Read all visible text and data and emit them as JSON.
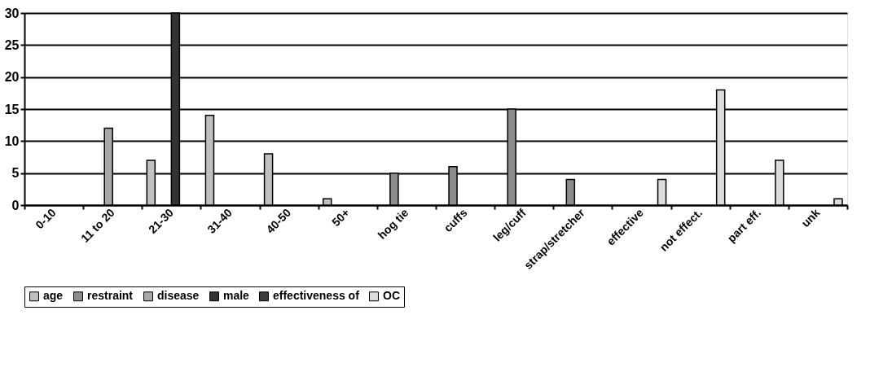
{
  "chart_data": {
    "type": "bar",
    "categories": [
      "0-10",
      "11 to 20",
      "21-30",
      "31-40",
      "40-50",
      "50+",
      "hog tie",
      "cuffs",
      "leg/cuff",
      "strap/stretcher",
      "effective",
      "not effect.",
      "part eff.",
      "unk"
    ],
    "series": [
      {
        "name": "age",
        "color": "#c0c0c0",
        "values": [
          null,
          null,
          7,
          14,
          8,
          1,
          null,
          null,
          null,
          null,
          null,
          null,
          null,
          null
        ]
      },
      {
        "name": "restraint",
        "color": "#8c8c8c",
        "values": [
          null,
          null,
          null,
          null,
          null,
          null,
          5,
          6,
          15,
          4,
          null,
          null,
          null,
          null
        ]
      },
      {
        "name": "disease",
        "color": "#a8a8a8",
        "values": [
          null,
          12,
          null,
          null,
          null,
          null,
          null,
          null,
          null,
          null,
          null,
          null,
          null,
          null
        ]
      },
      {
        "name": "male",
        "color": "#333333",
        "values": [
          null,
          null,
          30,
          null,
          null,
          null,
          null,
          null,
          null,
          null,
          null,
          null,
          null,
          null
        ]
      },
      {
        "name": "effectiveness of",
        "color": "#3c3c3c",
        "values": [
          null,
          null,
          null,
          null,
          null,
          null,
          null,
          null,
          null,
          null,
          null,
          null,
          null,
          null
        ]
      },
      {
        "name": "OC",
        "color": "#dcdcdc",
        "values": [
          null,
          null,
          null,
          null,
          null,
          null,
          null,
          null,
          null,
          null,
          4,
          18,
          7,
          1
        ]
      }
    ],
    "ylim": [
      0,
      30
    ],
    "yticks": [
      0,
      5,
      10,
      15,
      20,
      25,
      30
    ],
    "grid": "y",
    "legend": "bottom"
  }
}
